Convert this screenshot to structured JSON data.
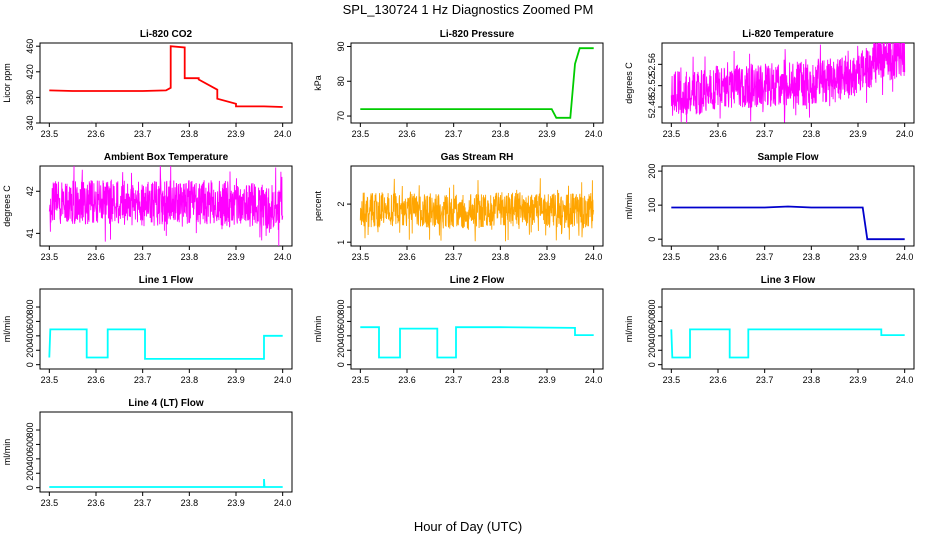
{
  "figure": {
    "title": "SPL_130724  1 Hz Diagnostics Zoomed PM",
    "xlabel": "Hour of Day (UTC)"
  },
  "chart_data": [
    {
      "type": "line",
      "title": "Li-820 CO2",
      "xlabel": "",
      "ylabel": "Licor ppm",
      "xlim": [
        23.5,
        24.0
      ],
      "ylim": [
        340,
        465
      ],
      "yticks": [
        340,
        380,
        420,
        460
      ],
      "xticks": [
        23.5,
        23.6,
        23.7,
        23.8,
        23.9,
        24.0
      ],
      "color": "#ff0000",
      "series": [
        {
          "x": [
            23.5,
            23.55,
            23.6,
            23.65,
            23.7,
            23.75,
            23.76,
            23.76,
            23.79,
            23.79,
            23.82,
            23.82,
            23.86,
            23.86,
            23.9,
            23.9,
            23.95,
            23.96,
            24.0
          ],
          "values": [
            391,
            390,
            390,
            390,
            390,
            391,
            395,
            460,
            458,
            410,
            410,
            408,
            392,
            378,
            370,
            366,
            366,
            366,
            365
          ]
        }
      ]
    },
    {
      "type": "line",
      "title": "Li-820 Pressure",
      "xlabel": "",
      "ylabel": "kPa",
      "xlim": [
        23.5,
        24.0
      ],
      "ylim": [
        68,
        91
      ],
      "yticks": [
        70,
        80,
        90
      ],
      "xticks": [
        23.5,
        23.6,
        23.7,
        23.8,
        23.9,
        24.0
      ],
      "color": "#00cc00",
      "series": [
        {
          "x": [
            23.5,
            23.7,
            23.91,
            23.92,
            23.93,
            23.95,
            23.96,
            23.97,
            24.0
          ],
          "values": [
            72,
            72,
            72,
            69.5,
            69.5,
            69.5,
            85,
            89.5,
            89.5
          ]
        }
      ]
    },
    {
      "type": "line",
      "title": "Li-820 Temperature",
      "xlabel": "",
      "ylabel": "degrees C",
      "xlim": [
        23.5,
        24.0
      ],
      "ylim": [
        52.45,
        52.6
      ],
      "yticks": [
        52.48,
        52.52,
        52.56
      ],
      "xticks": [
        23.5,
        23.6,
        23.7,
        23.8,
        23.9,
        24.0
      ],
      "color": "#ff00ff",
      "noisy": true,
      "series": [
        {
          "x": [
            23.5,
            23.58,
            23.6,
            23.68,
            23.7,
            23.8,
            23.85,
            23.9,
            23.93,
            23.95,
            24.0
          ],
          "values": [
            52.505,
            52.51,
            52.52,
            52.52,
            52.52,
            52.525,
            52.53,
            52.54,
            52.56,
            52.57,
            52.575
          ]
        }
      ]
    },
    {
      "type": "line",
      "title": "Ambient Box Temperature",
      "xlabel": "",
      "ylabel": "degrees C",
      "xlim": [
        23.5,
        24.0
      ],
      "ylim": [
        40.7,
        42.6
      ],
      "yticks": [
        41.0,
        42.0
      ],
      "xticks": [
        23.5,
        23.6,
        23.7,
        23.8,
        23.9,
        24.0
      ],
      "color": "#ff00ff",
      "noisy": true,
      "series": [
        {
          "x": [
            23.5,
            23.6,
            23.7,
            23.8,
            23.9,
            24.0
          ],
          "values": [
            41.7,
            41.75,
            41.7,
            41.75,
            41.7,
            41.6
          ]
        }
      ]
    },
    {
      "type": "line",
      "title": "Gas Stream RH",
      "xlabel": "",
      "ylabel": "percent",
      "xlim": [
        23.5,
        24.0
      ],
      "ylim": [
        0.9,
        3.0
      ],
      "yticks": [
        1.0,
        2.0
      ],
      "xticks": [
        23.5,
        23.6,
        23.7,
        23.8,
        23.9,
        24.0
      ],
      "color": "#ffa500",
      "noisy": true,
      "series": [
        {
          "x": [
            23.5,
            23.6,
            23.7,
            23.8,
            23.9,
            24.0
          ],
          "values": [
            1.85,
            1.85,
            1.8,
            1.85,
            1.85,
            1.8
          ]
        }
      ]
    },
    {
      "type": "line",
      "title": "Sample Flow",
      "xlabel": "",
      "ylabel": "ml/min",
      "xlim": [
        23.5,
        24.0
      ],
      "ylim": [
        -20,
        215
      ],
      "yticks": [
        0,
        100,
        200
      ],
      "xticks": [
        23.5,
        23.6,
        23.7,
        23.8,
        23.9,
        24.0
      ],
      "color": "#0000cc",
      "series": [
        {
          "x": [
            23.5,
            23.6,
            23.7,
            23.75,
            23.8,
            23.85,
            23.9,
            23.91,
            23.92,
            24.0
          ],
          "values": [
            93,
            93,
            93,
            96,
            93,
            93,
            93,
            93,
            0,
            0
          ]
        }
      ]
    },
    {
      "type": "line",
      "title": "Line 1 Flow",
      "xlabel": "",
      "ylabel": "ml/min",
      "xlim": [
        23.5,
        24.0
      ],
      "ylim": [
        -60,
        1050
      ],
      "yticks": [
        0,
        200,
        400,
        600,
        800
      ],
      "xticks": [
        23.5,
        23.6,
        23.7,
        23.8,
        23.9,
        24.0
      ],
      "color": "#00ffff",
      "series": [
        {
          "x": [
            23.5,
            23.502,
            23.58,
            23.58,
            23.625,
            23.625,
            23.705,
            23.705,
            23.96,
            23.96,
            24.0
          ],
          "values": [
            100,
            490,
            490,
            100,
            100,
            490,
            490,
            80,
            80,
            400,
            400
          ]
        }
      ]
    },
    {
      "type": "line",
      "title": "Line 2 Flow",
      "xlabel": "",
      "ylabel": "ml/min",
      "xlim": [
        23.5,
        24.0
      ],
      "ylim": [
        -60,
        1050
      ],
      "yticks": [
        0,
        200,
        400,
        600,
        800
      ],
      "xticks": [
        23.5,
        23.6,
        23.7,
        23.8,
        23.9,
        24.0
      ],
      "color": "#00ffff",
      "series": [
        {
          "x": [
            23.5,
            23.54,
            23.54,
            23.585,
            23.585,
            23.665,
            23.665,
            23.705,
            23.705,
            23.8,
            23.96,
            23.96,
            24.0
          ],
          "values": [
            520,
            520,
            100,
            100,
            500,
            500,
            100,
            100,
            520,
            520,
            510,
            410,
            410
          ]
        }
      ]
    },
    {
      "type": "line",
      "title": "Line 3 Flow",
      "xlabel": "",
      "ylabel": "ml/min",
      "xlim": [
        23.5,
        24.0
      ],
      "ylim": [
        -60,
        1050
      ],
      "yticks": [
        0,
        200,
        400,
        600,
        800
      ],
      "xticks": [
        23.5,
        23.6,
        23.7,
        23.8,
        23.9,
        24.0
      ],
      "color": "#00ffff",
      "series": [
        {
          "x": [
            23.5,
            23.502,
            23.54,
            23.54,
            23.625,
            23.625,
            23.665,
            23.665,
            23.8,
            23.95,
            23.95,
            24.0
          ],
          "values": [
            490,
            100,
            100,
            490,
            490,
            100,
            100,
            490,
            490,
            490,
            410,
            410
          ]
        }
      ]
    },
    {
      "type": "line",
      "title": "Line 4 (LT) Flow",
      "xlabel": "",
      "ylabel": "ml/min",
      "xlim": [
        23.5,
        24.0
      ],
      "ylim": [
        -60,
        1050
      ],
      "yticks": [
        0,
        200,
        400,
        600,
        800
      ],
      "xticks": [
        23.5,
        23.6,
        23.7,
        23.8,
        23.9,
        24.0
      ],
      "color": "#00ffff",
      "series": [
        {
          "x": [
            23.5,
            23.6,
            23.7,
            23.8,
            23.9,
            23.96,
            23.96,
            23.961,
            24.0
          ],
          "values": [
            10,
            10,
            10,
            10,
            10,
            10,
            120,
            10,
            10
          ]
        }
      ]
    }
  ]
}
